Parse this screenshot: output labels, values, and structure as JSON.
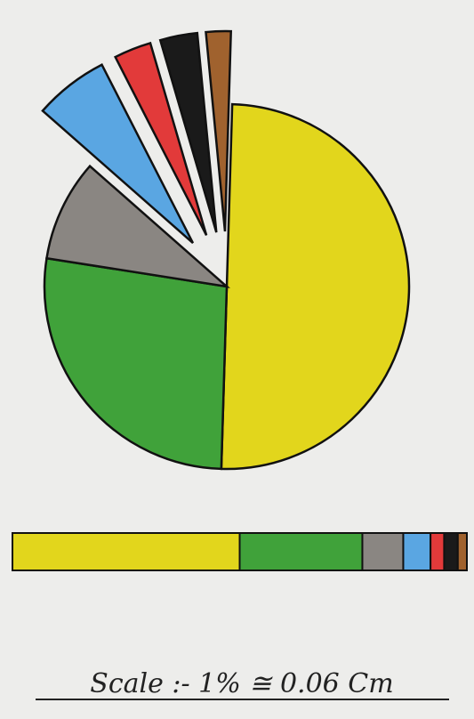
{
  "chart_data": {
    "type": "pie",
    "values": [
      50,
      27,
      9,
      6,
      3,
      3,
      2
    ],
    "colors": [
      "#e2d61c",
      "#40a23a",
      "#8a8682",
      "#5aa6e2",
      "#e23a3a",
      "#1a1a1a",
      "#a0622e"
    ],
    "explode": [
      false,
      false,
      false,
      true,
      true,
      true,
      true
    ],
    "annotation": "Scale :- 1% ≅ 0.06 Cm"
  }
}
